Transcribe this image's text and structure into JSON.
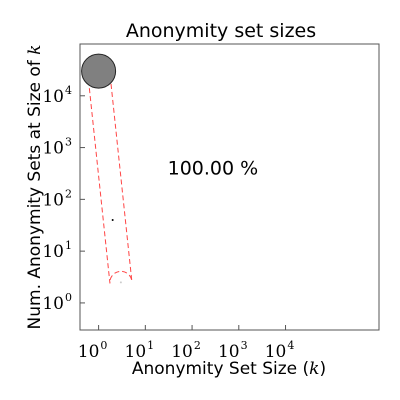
{
  "chart_data": {
    "type": "scatter",
    "title": "Anonymity set sizes",
    "xlabel_main": "Anonymity Set Size (",
    "xlabel_var": "k",
    "xlabel_end": ")",
    "ylabel_main": "Num. Anonymity Sets at Size of ",
    "ylabel_var": "k",
    "x_scale": "log",
    "y_scale": "log",
    "xlim": [
      0.4,
      1000000
    ],
    "ylim": [
      0.3,
      100000
    ],
    "x_ticks": [
      {
        "base": "10",
        "exp": "0",
        "value": 1
      },
      {
        "base": "10",
        "exp": "1",
        "value": 10
      },
      {
        "base": "10",
        "exp": "2",
        "value": 100
      },
      {
        "base": "10",
        "exp": "3",
        "value": 1000
      },
      {
        "base": "10",
        "exp": "4",
        "value": 10000
      }
    ],
    "y_ticks": [
      {
        "base": "10",
        "exp": "0",
        "value": 1
      },
      {
        "base": "10",
        "exp": "1",
        "value": 10
      },
      {
        "base": "10",
        "exp": "2",
        "value": 100
      },
      {
        "base": "10",
        "exp": "3",
        "value": 1000
      },
      {
        "base": "10",
        "exp": "4",
        "value": 10000
      }
    ],
    "points": [
      {
        "x": 1,
        "y": 30000,
        "size": "large",
        "color": "#808080"
      },
      {
        "x": 2,
        "y": 40,
        "size": "dot",
        "color": "#000000"
      },
      {
        "x": 3,
        "y": 2.5,
        "size": "dot",
        "color": "#cccccc"
      }
    ],
    "annotation": "100.00 %",
    "annotation_pos": {
      "x": 30,
      "y": 300
    },
    "envelope_color": "#ff4444",
    "grid": false,
    "legend": "none"
  }
}
